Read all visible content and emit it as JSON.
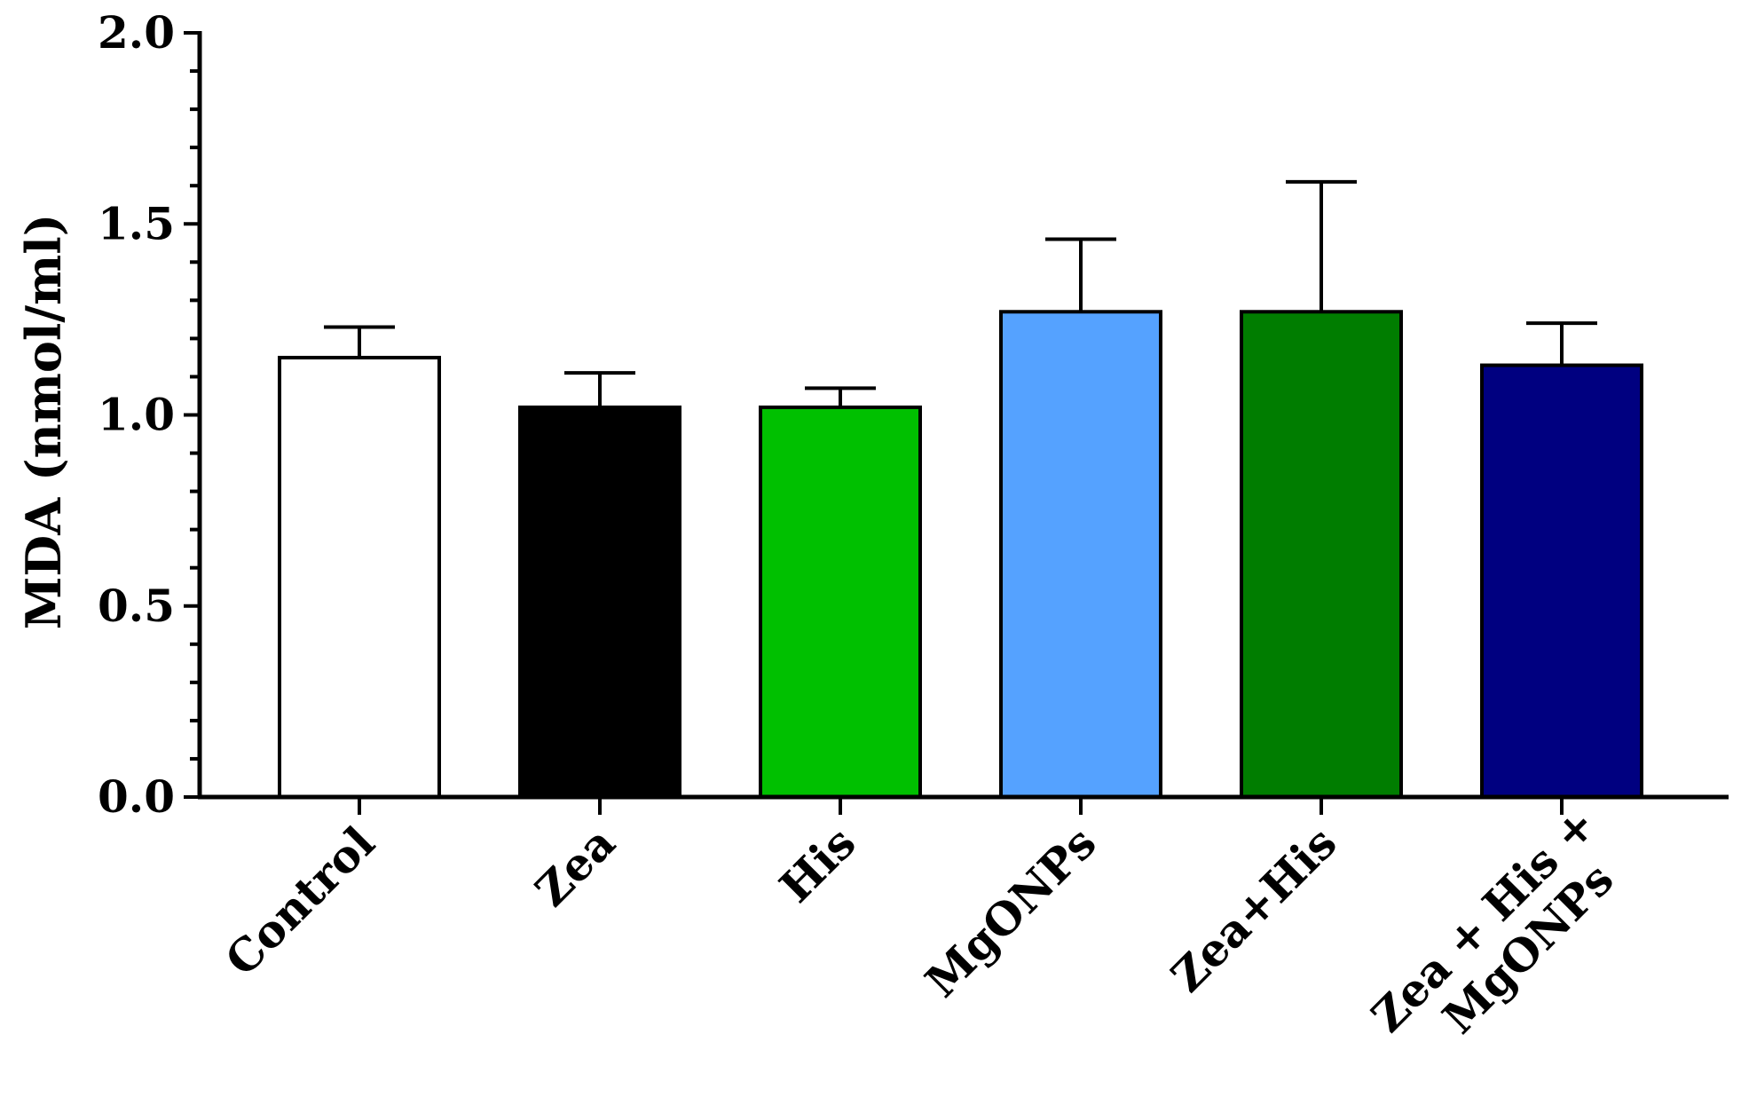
{
  "chart_data": {
    "type": "bar",
    "title": "",
    "xlabel": "",
    "ylabel": "MDA (nmol/ml)",
    "ylim": [
      0,
      2.0
    ],
    "yticks": [
      "0.0",
      "0.5",
      "1.0",
      "1.5",
      "2.0"
    ],
    "ytick_values": [
      0,
      0.5,
      1.0,
      1.5,
      2.0
    ],
    "y_minor_step": 0.1,
    "categories": [
      {
        "label_lines": [
          "Control"
        ]
      },
      {
        "label_lines": [
          "Zea"
        ]
      },
      {
        "label_lines": [
          "His"
        ]
      },
      {
        "label_lines": [
          "MgONPs"
        ]
      },
      {
        "label_lines": [
          "Zea+His"
        ]
      },
      {
        "label_lines": [
          "Zea + His +",
          "MgONPs"
        ]
      }
    ],
    "values": [
      1.15,
      1.02,
      1.02,
      1.27,
      1.27,
      1.13
    ],
    "errors": [
      0.08,
      0.09,
      0.05,
      0.19,
      0.34,
      0.11
    ],
    "colors": [
      "#ffffff",
      "#000000",
      "#00c000",
      "#55a2ff",
      "#007d00",
      "#000080"
    ],
    "grid": false,
    "legend": "none"
  }
}
